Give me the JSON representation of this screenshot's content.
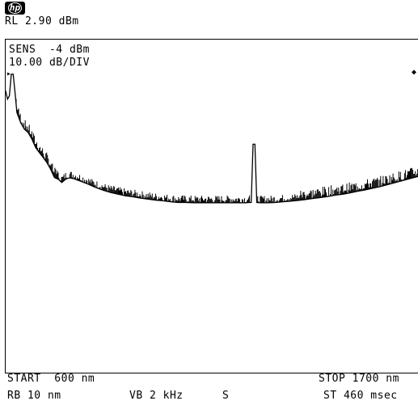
{
  "header": {
    "logo_text": "hp",
    "ref_level": "RL 2.90 dBm",
    "sensitivity": "SENS  -4 dBm",
    "scale": "10.00 dB/DIV"
  },
  "footer": {
    "start": "START  600 nm",
    "stop": "STOP 1700 nm",
    "res_bw": "RB 10 nm",
    "video_bw": "VB 2 kHz",
    "status": "S",
    "sweep_time": "ST 460 msec"
  },
  "chart_data": {
    "type": "line",
    "x_start": 600,
    "x_stop": 1700,
    "x_unit": "nm",
    "ref_level_dBm": 2.9,
    "db_per_div": 10.0,
    "divisions": 10,
    "trace_color": "#000000",
    "series": [
      {
        "points_dBm": [
          [
            600,
            -12.5
          ],
          [
            605,
            -15
          ],
          [
            610,
            -14
          ],
          [
            615,
            -7.5
          ],
          [
            620,
            -7.5
          ],
          [
            625,
            -13
          ],
          [
            630,
            -19
          ],
          [
            640,
            -22
          ],
          [
            650,
            -24
          ],
          [
            660,
            -25
          ],
          [
            670,
            -27
          ],
          [
            680,
            -29.5
          ],
          [
            690,
            -31
          ],
          [
            700,
            -32.5
          ],
          [
            710,
            -34
          ],
          [
            720,
            -36
          ],
          [
            730,
            -38.5
          ],
          [
            740,
            -39
          ],
          [
            750,
            -40
          ],
          [
            760,
            -39
          ],
          [
            770,
            -38.6
          ],
          [
            780,
            -38.8
          ],
          [
            790,
            -39.2
          ],
          [
            800,
            -39.6
          ],
          [
            820,
            -40.5
          ],
          [
            840,
            -41.5
          ],
          [
            860,
            -42.3
          ],
          [
            880,
            -43
          ],
          [
            900,
            -43.5
          ],
          [
            920,
            -44
          ],
          [
            940,
            -44.3
          ],
          [
            960,
            -44.7
          ],
          [
            980,
            -45
          ],
          [
            1000,
            -45.3
          ],
          [
            1020,
            -45.5
          ],
          [
            1040,
            -45.8
          ],
          [
            1060,
            -46
          ],
          [
            1080,
            -46
          ],
          [
            1100,
            -46.1
          ],
          [
            1120,
            -46.1
          ],
          [
            1140,
            -46.1
          ],
          [
            1160,
            -46.1
          ],
          [
            1180,
            -46.1
          ],
          [
            1200,
            -46.1
          ],
          [
            1220,
            -46.1
          ],
          [
            1240,
            -46.1
          ],
          [
            1250,
            -46
          ],
          [
            1255,
            -46
          ],
          [
            1260,
            -28.5
          ],
          [
            1265,
            -28.5
          ],
          [
            1270,
            -46
          ],
          [
            1280,
            -46.1
          ],
          [
            1300,
            -46.1
          ],
          [
            1320,
            -46
          ],
          [
            1340,
            -45.8
          ],
          [
            1360,
            -45.6
          ],
          [
            1380,
            -45.4
          ],
          [
            1400,
            -45.1
          ],
          [
            1420,
            -44.8
          ],
          [
            1440,
            -44.5
          ],
          [
            1460,
            -44.2
          ],
          [
            1480,
            -43.8
          ],
          [
            1500,
            -43.5
          ],
          [
            1520,
            -43.1
          ],
          [
            1540,
            -42.6
          ],
          [
            1560,
            -42.2
          ],
          [
            1580,
            -41.7
          ],
          [
            1600,
            -41.2
          ],
          [
            1620,
            -40.6
          ],
          [
            1640,
            -40
          ],
          [
            1660,
            -39.4
          ],
          [
            1680,
            -38.8
          ],
          [
            1700,
            -38.2
          ]
        ]
      }
    ]
  }
}
